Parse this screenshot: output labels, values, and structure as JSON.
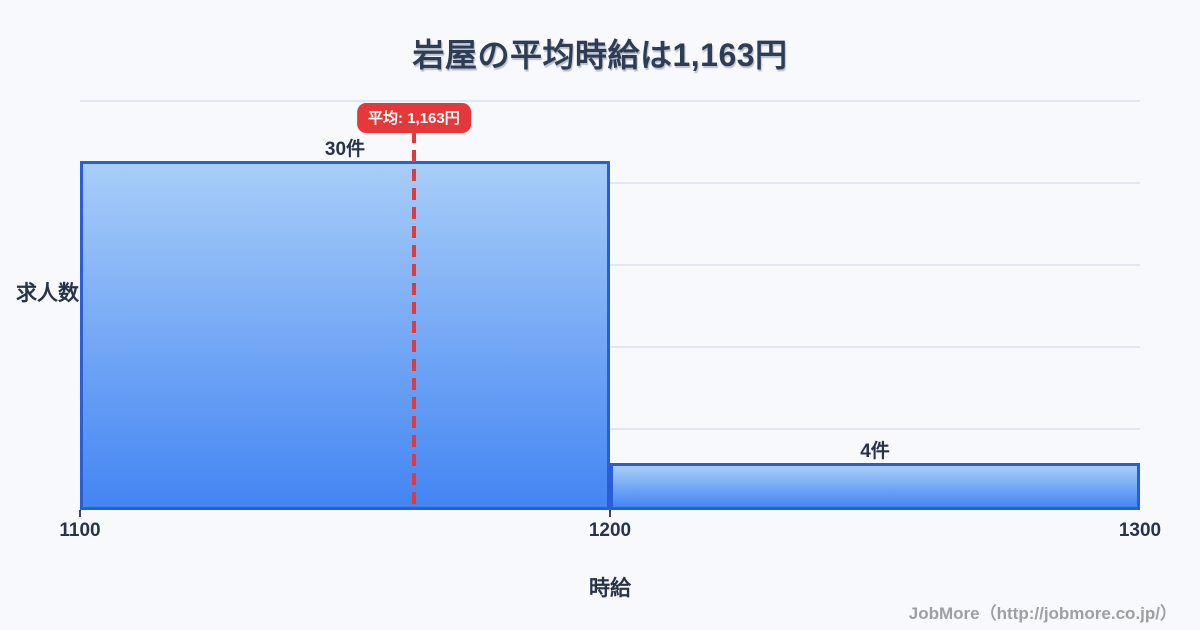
{
  "chart_data": {
    "type": "bar",
    "subtype": "histogram",
    "title": "岩屋の平均時給は1,163円",
    "xlabel": "時給",
    "ylabel": "求人数",
    "x_bin_edges": [
      1100,
      1200,
      1300
    ],
    "categories": [
      "1100-1200",
      "1200-1300"
    ],
    "values": [
      30,
      4
    ],
    "bar_labels": [
      "30件",
      "4件"
    ],
    "unit": "件",
    "x_ticks": [
      1100,
      1200,
      1300
    ],
    "x_tick_marks": [
      1100,
      1200
    ],
    "xlim": [
      1100,
      1300
    ],
    "ylim": [
      0,
      30
    ],
    "grid": "horizontal",
    "mean": {
      "value": 1163,
      "label": "平均: 1,163円"
    },
    "colors": {
      "background": "#f8f9fc",
      "grid": "#e2e6f0",
      "bar_border": "#2a5ed6",
      "bar_fill_top": "#a8cdf8",
      "bar_fill_bottom": "#4385f3",
      "mean_red": "#e5383b",
      "text_dark": "#273349",
      "title_color": "#2e3d54",
      "footer_gray": "#9da0a3"
    }
  },
  "footer": {
    "credit": "JobMore（http://jobmore.co.jp/）"
  }
}
